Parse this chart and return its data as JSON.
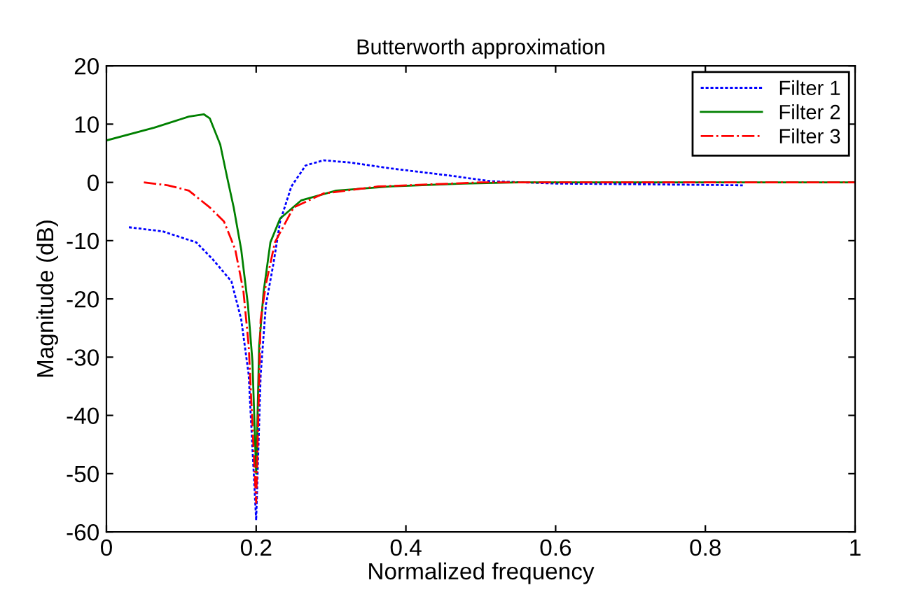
{
  "chart_data": {
    "type": "line",
    "title": "Butterworth approximation",
    "xlabel": "Normalized frequency",
    "ylabel": "Magnitude (dB)",
    "xlim": [
      0,
      1
    ],
    "ylim": [
      -60,
      20
    ],
    "xticks": [
      0,
      0.2,
      0.4,
      0.6,
      0.8,
      1
    ],
    "yticks": [
      -60,
      -50,
      -40,
      -30,
      -20,
      -10,
      0,
      10,
      20
    ],
    "grid": false,
    "legend": "top right",
    "series": [
      {
        "name": "Filter 1",
        "color": "#0000ff",
        "line_style": "dotted",
        "x": [
          0.03,
          0.075,
          0.12,
          0.142,
          0.167,
          0.18,
          0.19,
          0.2,
          0.206,
          0.213,
          0.223,
          0.232,
          0.247,
          0.266,
          0.29,
          0.326,
          0.38,
          0.457,
          0.513,
          0.6,
          0.7,
          0.85
        ],
        "values": [
          -7.7,
          -8.4,
          -10.3,
          -13.2,
          -17,
          -23.5,
          -33,
          -58,
          -33,
          -21,
          -14,
          -6.7,
          -0.7,
          2.9,
          3.8,
          3.4,
          2.4,
          1.2,
          0.2,
          -0.2,
          -0.3,
          -0.5
        ]
      },
      {
        "name": "Filter 2",
        "color": "#008000",
        "line_style": "solid",
        "x": [
          0,
          0.064,
          0.11,
          0.13,
          0.138,
          0.152,
          0.161,
          0.17,
          0.18,
          0.189,
          0.195,
          0.2,
          0.204,
          0.21,
          0.219,
          0.232,
          0.26,
          0.307,
          0.38,
          0.476,
          0.55,
          1
        ],
        "values": [
          7.2,
          9.4,
          11.3,
          11.7,
          11,
          6.5,
          1,
          -4.3,
          -11.5,
          -21,
          -30.7,
          -50,
          -28,
          -18.7,
          -10.3,
          -6.2,
          -3.1,
          -1.4,
          -0.7,
          -0.2,
          0,
          0
        ]
      },
      {
        "name": "Filter 3",
        "color": "#ff0000",
        "line_style": "dashdot",
        "x": [
          0.05,
          0.082,
          0.11,
          0.138,
          0.157,
          0.172,
          0.183,
          0.19,
          0.2,
          0.206,
          0.213,
          0.225,
          0.25,
          0.29,
          0.363,
          0.5,
          1
        ],
        "values": [
          0,
          -0.5,
          -1.4,
          -4.3,
          -6.7,
          -11.5,
          -18.7,
          -28,
          -55,
          -23.5,
          -17.5,
          -10.3,
          -4.3,
          -1.9,
          -0.7,
          0,
          0
        ]
      }
    ]
  }
}
